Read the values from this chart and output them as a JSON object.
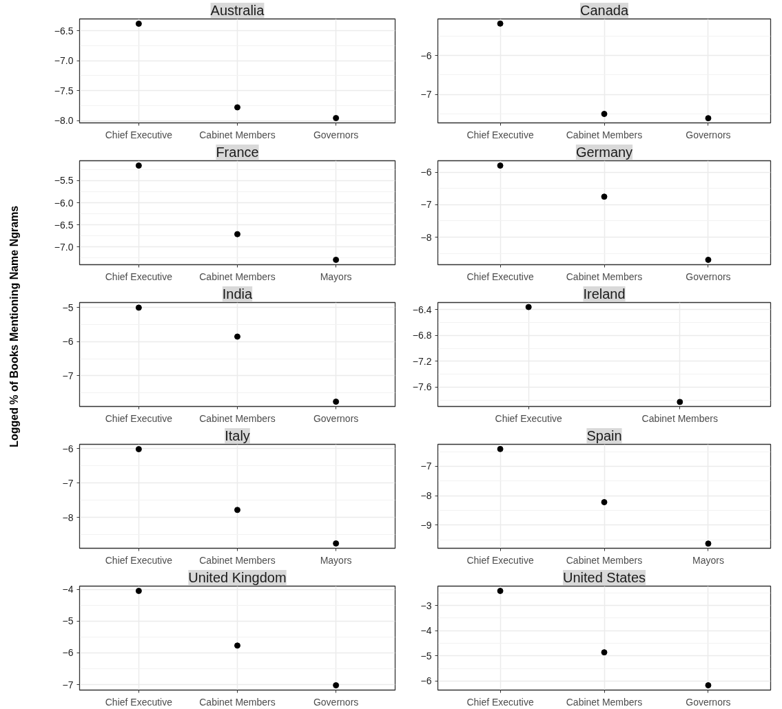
{
  "chart_data": [
    {
      "type": "scatter",
      "title": "Australia",
      "categories": [
        "Chief Executive",
        "Cabinet Members",
        "Governors"
      ],
      "values": [
        -6.38,
        -7.78,
        -7.96
      ],
      "color": "#000000",
      "marker": "circle",
      "grid": true,
      "ylim": [
        -8.04,
        -6.3
      ],
      "yticks": [
        {
          "value": -8.0,
          "label": "−8.0"
        },
        {
          "value": -7.5,
          "label": "−7.5"
        },
        {
          "value": -7.0,
          "label": "−7.0"
        },
        {
          "value": -6.5,
          "label": "−6.5"
        }
      ]
    },
    {
      "type": "scatter",
      "title": "Canada",
      "categories": [
        "Chief Executive",
        "Cabinet Members",
        "Governors"
      ],
      "values": [
        -5.18,
        -7.5,
        -7.61
      ],
      "color": "#000000",
      "marker": "circle",
      "grid": true,
      "ylim": [
        -7.73,
        -5.06
      ],
      "yticks": [
        {
          "value": -7,
          "label": "−7"
        },
        {
          "value": -6,
          "label": "−6"
        }
      ]
    },
    {
      "type": "scatter",
      "title": "France",
      "categories": [
        "Chief Executive",
        "Cabinet Members",
        "Mayors"
      ],
      "values": [
        -5.16,
        -6.71,
        -7.29
      ],
      "color": "#000000",
      "marker": "circle",
      "grid": true,
      "ylim": [
        -7.4,
        -5.05
      ],
      "yticks": [
        {
          "value": -7.0,
          "label": "−7.0"
        },
        {
          "value": -6.5,
          "label": "−6.5"
        },
        {
          "value": -6.0,
          "label": "−6.0"
        },
        {
          "value": -5.5,
          "label": "−5.5"
        }
      ]
    },
    {
      "type": "scatter",
      "title": "Germany",
      "categories": [
        "Chief Executive",
        "Cabinet Members",
        "Governors"
      ],
      "values": [
        -5.79,
        -6.75,
        -8.7
      ],
      "color": "#000000",
      "marker": "circle",
      "grid": true,
      "ylim": [
        -8.85,
        -5.64
      ],
      "yticks": [
        {
          "value": -8,
          "label": "−8"
        },
        {
          "value": -7,
          "label": "−7"
        },
        {
          "value": -6,
          "label": "−6"
        }
      ]
    },
    {
      "type": "scatter",
      "title": "India",
      "ylabel": "Logged % of Books Mentioning Name Ngrams",
      "categories": [
        "Chief Executive",
        "Cabinet Members",
        "Governors"
      ],
      "values": [
        -5.0,
        -5.85,
        -7.76
      ],
      "color": "#000000",
      "marker": "circle",
      "grid": true,
      "ylim": [
        -7.9,
        -4.85
      ],
      "yticks": [
        {
          "value": -7,
          "label": "−7"
        },
        {
          "value": -6,
          "label": "−6"
        },
        {
          "value": -5,
          "label": "−5"
        }
      ]
    },
    {
      "type": "scatter",
      "title": "Ireland",
      "categories": [
        "Chief Executive",
        "Cabinet Members"
      ],
      "values": [
        -6.36,
        -7.83
      ],
      "color": "#000000",
      "marker": "circle",
      "grid": true,
      "ylim": [
        -7.9,
        -6.29
      ],
      "yticks": [
        {
          "value": -7.6,
          "label": "−7.6"
        },
        {
          "value": -7.2,
          "label": "−7.2"
        },
        {
          "value": -6.8,
          "label": "−6.8"
        },
        {
          "value": -6.4,
          "label": "−6.4"
        }
      ]
    },
    {
      "type": "scatter",
      "title": "Italy",
      "categories": [
        "Chief Executive",
        "Cabinet Members",
        "Mayors"
      ],
      "values": [
        -6.02,
        -7.78,
        -8.75
      ],
      "color": "#000000",
      "marker": "circle",
      "grid": true,
      "ylim": [
        -8.89,
        -5.88
      ],
      "yticks": [
        {
          "value": -8,
          "label": "−8"
        },
        {
          "value": -7,
          "label": "−7"
        },
        {
          "value": -6,
          "label": "−6"
        }
      ]
    },
    {
      "type": "scatter",
      "title": "Spain",
      "categories": [
        "Chief Executive",
        "Cabinet Members",
        "Mayors"
      ],
      "values": [
        -6.41,
        -8.22,
        -9.63
      ],
      "color": "#000000",
      "marker": "circle",
      "grid": true,
      "ylim": [
        -9.79,
        -6.25
      ],
      "yticks": [
        {
          "value": -9,
          "label": "−9"
        },
        {
          "value": -8,
          "label": "−8"
        },
        {
          "value": -7,
          "label": "−7"
        }
      ]
    },
    {
      "type": "scatter",
      "title": "United Kingdom",
      "categories": [
        "Chief Executive",
        "Cabinet Members",
        "Governors"
      ],
      "values": [
        -4.05,
        -5.77,
        -7.02
      ],
      "color": "#000000",
      "marker": "circle",
      "grid": true,
      "ylim": [
        -7.17,
        -3.9
      ],
      "yticks": [
        {
          "value": -7,
          "label": "−7"
        },
        {
          "value": -6,
          "label": "−6"
        },
        {
          "value": -5,
          "label": "−5"
        },
        {
          "value": -4,
          "label": "−4"
        }
      ]
    },
    {
      "type": "scatter",
      "title": "United States",
      "categories": [
        "Chief Executive",
        "Cabinet Members",
        "Governors"
      ],
      "values": [
        -2.42,
        -4.86,
        -6.17
      ],
      "color": "#000000",
      "marker": "circle",
      "grid": true,
      "ylim": [
        -6.36,
        -2.23
      ],
      "yticks": [
        {
          "value": -6,
          "label": "−6"
        },
        {
          "value": -5,
          "label": "−5"
        },
        {
          "value": -4,
          "label": "−4"
        },
        {
          "value": -3,
          "label": "−3"
        }
      ]
    }
  ]
}
